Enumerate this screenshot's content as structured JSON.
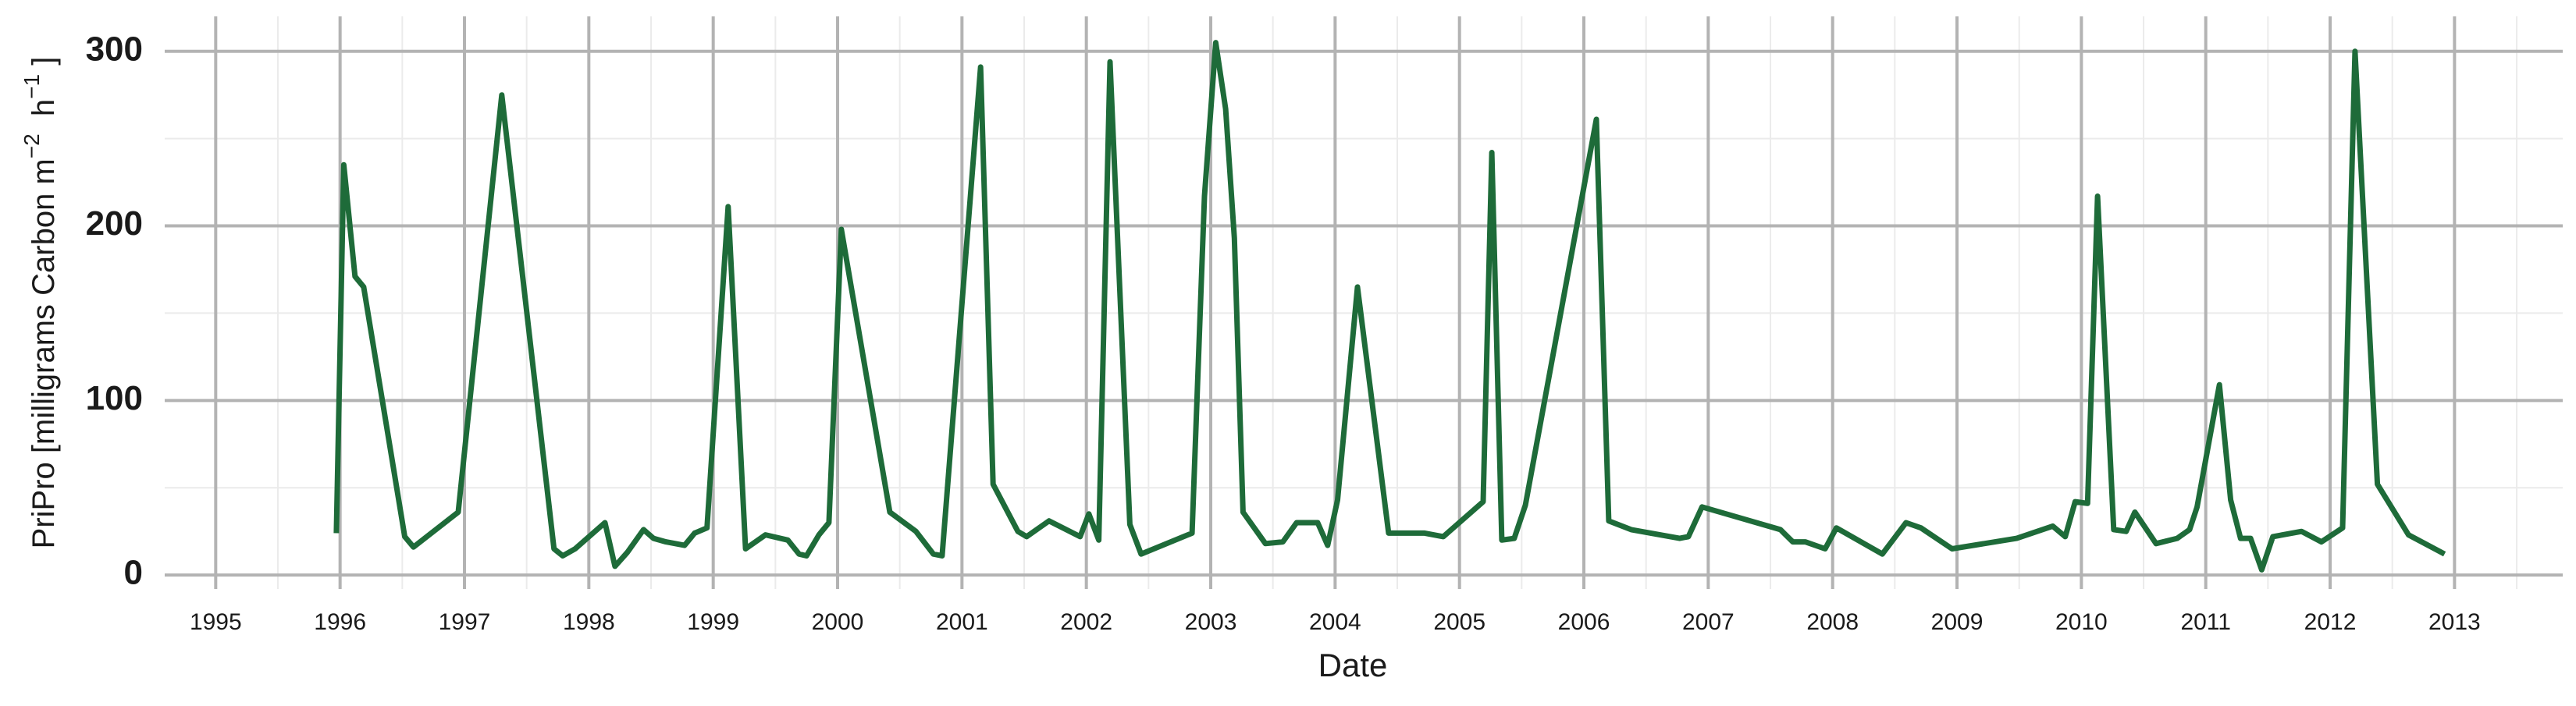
{
  "chart_data": {
    "type": "line",
    "x_label": "Date",
    "y_label_parts": [
      "PriPro [milligrams Carbon m",
      "−2",
      "  h",
      "−1",
      " ]"
    ],
    "color": "#1e6b39",
    "x": [
      1995.97,
      1996.03,
      1996.12,
      1996.19,
      1996.52,
      1996.59,
      1996.95,
      1997.3,
      1997.72,
      1997.79,
      1997.89,
      1998.13,
      1998.21,
      1998.31,
      1998.44,
      1998.52,
      1998.62,
      1998.77,
      1998.85,
      1998.95,
      1999.12,
      1999.26,
      1999.42,
      1999.6,
      1999.69,
      1999.75,
      1999.85,
      1999.93,
      2000.03,
      2000.42,
      2000.63,
      2000.77,
      2000.84,
      2001.15,
      2001.25,
      2001.45,
      2001.52,
      2001.7,
      2001.95,
      2002.02,
      2002.1,
      2002.19,
      2002.35,
      2002.44,
      2002.85,
      2002.95,
      2003.04,
      2003.12,
      2003.19,
      2003.26,
      2003.44,
      2003.58,
      2003.69,
      2003.86,
      2003.94,
      2004.02,
      2004.18,
      2004.43,
      2004.72,
      2004.87,
      2005.19,
      2005.26,
      2005.34,
      2005.44,
      2005.53,
      2006.1,
      2006.2,
      2006.38,
      2006.77,
      2006.84,
      2006.95,
      2007.58,
      2007.68,
      2007.78,
      2007.94,
      2008.03,
      2008.4,
      2008.59,
      2008.71,
      2008.96,
      2009.48,
      2009.77,
      2009.87,
      2009.95,
      2010.05,
      2010.13,
      2010.26,
      2010.36,
      2010.43,
      2010.6,
      2010.77,
      2010.87,
      2010.93,
      2011.11,
      2011.2,
      2011.28,
      2011.36,
      2011.45,
      2011.54,
      2011.77,
      2011.93,
      2012.1,
      2012.2,
      2012.38,
      2012.63,
      2012.92
    ],
    "values": [
      24,
      235,
      171,
      165,
      22,
      16,
      36,
      275,
      15,
      11,
      15,
      30,
      5,
      13,
      26,
      21,
      19,
      17,
      24,
      27,
      211,
      15,
      23,
      20,
      12,
      11,
      23,
      30,
      198,
      36,
      25,
      12,
      11,
      291,
      52,
      25,
      22,
      31,
      22,
      35,
      20,
      294,
      29,
      12,
      24,
      217,
      305,
      267,
      193,
      36,
      18,
      19,
      30,
      30,
      17,
      43,
      165,
      24,
      24,
      22,
      42,
      242,
      20,
      21,
      40,
      261,
      31,
      26,
      21,
      22,
      39,
      26,
      19,
      19,
      15,
      27,
      12,
      30,
      27,
      15,
      21,
      28,
      22,
      42,
      41,
      217,
      26,
      25,
      36,
      18,
      21,
      26,
      39,
      109,
      43,
      21,
      21,
      3,
      22,
      25,
      19,
      27,
      300,
      52,
      23,
      12
    ],
    "xlim": [
      1994.59,
      2013.87
    ],
    "xticks": [
      1995,
      1996,
      1997,
      1998,
      1999,
      2000,
      2001,
      2002,
      2003,
      2004,
      2005,
      2006,
      2007,
      2008,
      2009,
      2010,
      2011,
      2012,
      2013
    ],
    "ylim": [
      -8,
      320
    ],
    "yticks": [
      0,
      100,
      200,
      300
    ],
    "grid": true
  }
}
